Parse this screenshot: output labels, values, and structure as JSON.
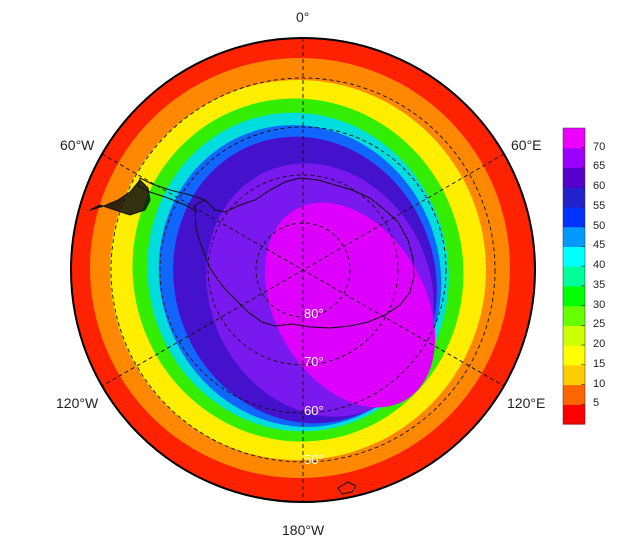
{
  "longitude_labels": {
    "top": "0°",
    "upper_left": "60°W",
    "upper_right": "60°E",
    "lower_left": "120°W",
    "lower_right": "120°E",
    "bottom": "180°W"
  },
  "latitude_labels": [
    "80°",
    "70°",
    "60°",
    "50°"
  ],
  "colorbar": {
    "ticks": [
      "70",
      "65",
      "60",
      "55",
      "50",
      "45",
      "40",
      "35",
      "30",
      "25",
      "20",
      "15",
      "10",
      "5"
    ],
    "range": [
      0,
      75
    ],
    "colors": [
      "#ff0000",
      "#ff6600",
      "#ffcc00",
      "#ffff00",
      "#ccff00",
      "#66ff00",
      "#00ff00",
      "#00ff99",
      "#00ffff",
      "#0099ff",
      "#0033ff",
      "#2222cc",
      "#5500cc",
      "#9900ff",
      "#ee00ff"
    ]
  },
  "map": {
    "projection": "south-polar-stereographic",
    "field_colors": {
      "outer": "#ff2200",
      "orange": "#ff8800",
      "yellow": "#ffee00",
      "green": "#33ee00",
      "cyan": "#00dddd",
      "blue": "#1166ff",
      "indigo": "#4411cc",
      "violet": "#7a18f0",
      "magenta": "#dd00ff"
    },
    "grid_style": "dashed"
  }
}
